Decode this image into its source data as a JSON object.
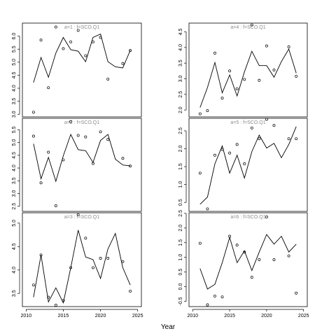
{
  "xlabel": "Year",
  "chart_data": [
    {
      "type": "line",
      "title": "a=1 : f=SCO.Q1",
      "x": [
        2011,
        2012,
        2013,
        2014,
        2015,
        2016,
        2017,
        2018,
        2019,
        2020,
        2021,
        2022,
        2023,
        2024
      ],
      "xlim": [
        2009.5,
        2025.5
      ],
      "xticks": [
        2010,
        2015,
        2020,
        2025
      ],
      "ylim": [
        2.9,
        6.5
      ],
      "yticks": [
        "3.0",
        "3.5",
        "4.0",
        "4.5",
        "5.0",
        "5.5",
        "6.0"
      ],
      "series": [
        {
          "kind": "line",
          "values": [
            4.22,
            5.18,
            4.42,
            5.35,
            5.95,
            5.48,
            5.42,
            5.02,
            5.95,
            6.08,
            5.02,
            4.82,
            4.78,
            5.45
          ]
        },
        {
          "kind": "points",
          "values": [
            3.08,
            5.85,
            4.02,
            6.35,
            5.52,
            5.78,
            6.22,
            5.25,
            5.78,
            5.95,
            4.35,
            null,
            4.95,
            5.45
          ]
        }
      ]
    },
    {
      "type": "line",
      "title": "a=4 : f=SCO.Q1",
      "x": [
        2011,
        2012,
        2013,
        2014,
        2015,
        2016,
        2017,
        2018,
        2019,
        2020,
        2021,
        2022,
        2023,
        2024
      ],
      "xlim": [
        2009.5,
        2025.5
      ],
      "xticks": [
        2010,
        2015,
        2020,
        2025
      ],
      "ylim": [
        1.78,
        4.78
      ],
      "yticks": [
        "2.0",
        "2.5",
        "3.0",
        "3.5",
        "4.0",
        "4.5"
      ],
      "series": [
        {
          "kind": "line",
          "values": [
            2.08,
            2.72,
            3.52,
            2.55,
            3.12,
            2.45,
            3.22,
            3.88,
            3.42,
            3.42,
            3.05,
            3.55,
            3.95,
            3.18
          ]
        },
        {
          "kind": "points",
          "values": [
            1.88,
            1.98,
            3.82,
            2.38,
            3.25,
            2.68,
            2.98,
            4.72,
            2.95,
            4.05,
            3.28,
            null,
            4.02,
            3.08
          ]
        }
      ]
    },
    {
      "type": "line",
      "title": "a=2 : f=SCO.Q1",
      "x": [
        2011,
        2012,
        2013,
        2014,
        2015,
        2016,
        2017,
        2018,
        2019,
        2020,
        2021,
        2022,
        2023,
        2024
      ],
      "xlim": [
        2009.5,
        2025.5
      ],
      "xticks": [
        2010,
        2015,
        2020,
        2025
      ],
      "ylim": [
        2.3,
        5.95
      ],
      "yticks": [
        "2.5",
        "3.0",
        "3.5",
        "4.0",
        "4.5",
        "5.0",
        "5.5"
      ],
      "series": [
        {
          "kind": "line",
          "values": [
            4.95,
            3.58,
            4.42,
            3.48,
            4.48,
            5.32,
            4.72,
            4.68,
            4.22,
            5.08,
            5.32,
            4.35,
            4.12,
            4.08
          ]
        },
        {
          "kind": "points",
          "values": [
            5.25,
            3.42,
            4.62,
            2.52,
            4.32,
            5.82,
            5.28,
            5.22,
            4.18,
            5.42,
            5.12,
            null,
            4.38,
            4.08
          ]
        }
      ]
    },
    {
      "type": "line",
      "title": "a=5 : f=SCO.Q1",
      "x": [
        2011,
        2012,
        2013,
        2014,
        2015,
        2016,
        2017,
        2018,
        2019,
        2020,
        2021,
        2022,
        2023,
        2024
      ],
      "xlim": [
        2009.5,
        2025.5
      ],
      "xticks": [
        2010,
        2015,
        2020,
        2025
      ],
      "ylim": [
        0.25,
        2.85
      ],
      "yticks": [
        "0.5",
        "1.0",
        "1.5",
        "2.0",
        "2.5"
      ],
      "series": [
        {
          "kind": "line",
          "values": [
            0.45,
            0.65,
            1.58,
            2.08,
            1.32,
            1.82,
            1.18,
            1.92,
            2.38,
            2.02,
            2.15,
            1.75,
            2.12,
            2.62
          ]
        },
        {
          "kind": "points",
          "values": [
            1.32,
            0.32,
            1.82,
            1.98,
            1.88,
            2.12,
            1.58,
            2.58,
            2.28,
            2.82,
            2.65,
            null,
            2.28,
            2.28
          ]
        }
      ]
    },
    {
      "type": "line",
      "title": "a=3 : f=SCO.Q1",
      "x": [
        2011,
        2012,
        2013,
        2014,
        2015,
        2016,
        2017,
        2018,
        2019,
        2020,
        2021,
        2022,
        2023,
        2024
      ],
      "xlim": [
        2009.5,
        2025.5
      ],
      "xticks": [
        2010,
        2015,
        2020,
        2025
      ],
      "ylim": [
        3.22,
        5.22
      ],
      "yticks": [
        "3.5",
        "4.0",
        "4.5",
        "5.0"
      ],
      "series": [
        {
          "kind": "line",
          "values": [
            3.42,
            4.32,
            3.32,
            3.62,
            3.3,
            4.05,
            4.85,
            4.28,
            4.22,
            3.82,
            4.45,
            4.78,
            4.05,
            3.68
          ]
        },
        {
          "kind": "points",
          "values": [
            3.68,
            4.32,
            3.42,
            3.25,
            3.35,
            4.05,
            5.18,
            4.68,
            4.05,
            4.25,
            4.25,
            null,
            4.18,
            3.55
          ]
        }
      ]
    },
    {
      "type": "line",
      "title": "a=6 : f=SCO.Q1",
      "x": [
        2011,
        2012,
        2013,
        2014,
        2015,
        2016,
        2017,
        2018,
        2019,
        2020,
        2021,
        2022,
        2023,
        2024
      ],
      "xlim": [
        2009.5,
        2025.5
      ],
      "xticks": [
        2010,
        2015,
        2020,
        2025
      ],
      "ylim": [
        -0.68,
        2.52
      ],
      "yticks": [
        "-0.5",
        "0.0",
        "0.5",
        "1.0",
        "1.5",
        "2.0",
        "2.5"
      ],
      "series": [
        {
          "kind": "line",
          "values": [
            0.62,
            -0.08,
            0.08,
            0.82,
            1.68,
            0.82,
            1.22,
            0.55,
            1.18,
            1.78,
            1.45,
            1.72,
            1.18,
            1.45
          ]
        },
        {
          "kind": "points",
          "values": [
            1.48,
            -0.62,
            -0.32,
            -0.35,
            1.72,
            1.42,
            1.18,
            0.32,
            0.92,
            2.38,
            0.92,
            null,
            1.05,
            -0.22
          ]
        }
      ]
    }
  ]
}
